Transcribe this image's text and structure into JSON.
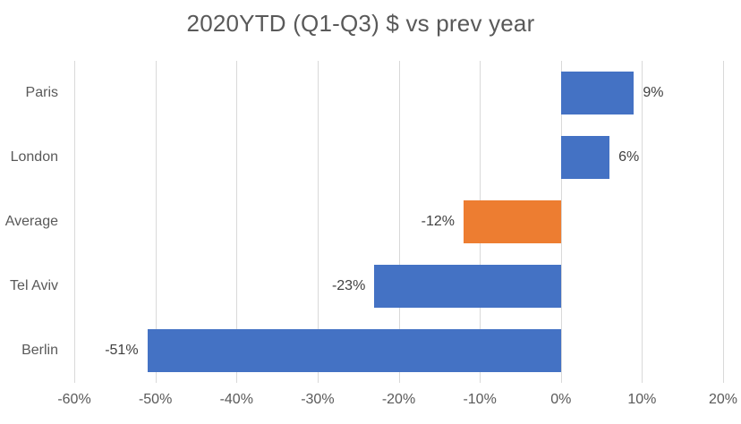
{
  "chart_data": {
    "type": "bar",
    "orientation": "horizontal",
    "title": "2020YTD (Q1-Q3) $ vs prev year",
    "categories": [
      "Paris",
      "London",
      "Average",
      "Tel Aviv",
      "Berlin"
    ],
    "values": [
      9,
      6,
      -12,
      -23,
      -51
    ],
    "data_labels": [
      "9%",
      "6%",
      "-12%",
      "-23%",
      "-51%"
    ],
    "bar_colors": [
      "#4472C4",
      "#4472C4",
      "#ED7D31",
      "#4472C4",
      "#4472C4"
    ],
    "x_tick_values": [
      -60,
      -50,
      -40,
      -30,
      -20,
      -10,
      0,
      10,
      20
    ],
    "x_tick_labels": [
      "-60%",
      "-50%",
      "-40%",
      "-30%",
      "-20%",
      "-10%",
      "0%",
      "10%",
      "20%"
    ],
    "xlim": [
      -60,
      20
    ],
    "grid": true,
    "legend": "none",
    "xlabel": "",
    "ylabel": ""
  },
  "colors": {
    "bar_blue": "#4472C4",
    "bar_orange": "#ED7D31",
    "gridline": "#D9D9D9",
    "title_text": "#595959",
    "axis_text": "#595959",
    "data_label_text": "#404040",
    "background": "#FFFFFF"
  }
}
